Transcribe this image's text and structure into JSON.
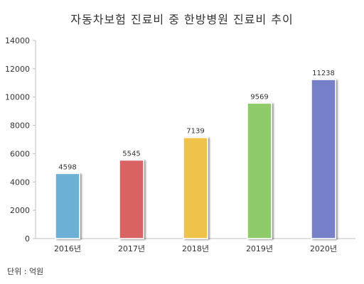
{
  "chart_data": {
    "type": "bar",
    "title": "자동차보험 진료비 중 한방병원 진료비 추이",
    "categories": [
      "2016년",
      "2017년",
      "2018년",
      "2019년",
      "2020년"
    ],
    "values": [
      4598,
      5545,
      7139,
      9569,
      11238
    ],
    "ylim": [
      0,
      14000
    ],
    "yticks": [
      0,
      2000,
      4000,
      6000,
      8000,
      10000,
      12000,
      14000
    ],
    "bar_colors": [
      "#6db0d6",
      "#d96464",
      "#efc24a",
      "#8fcb6a",
      "#7480c8"
    ],
    "unit_note": "단위 : 억원",
    "grid": false,
    "legend": "none"
  }
}
